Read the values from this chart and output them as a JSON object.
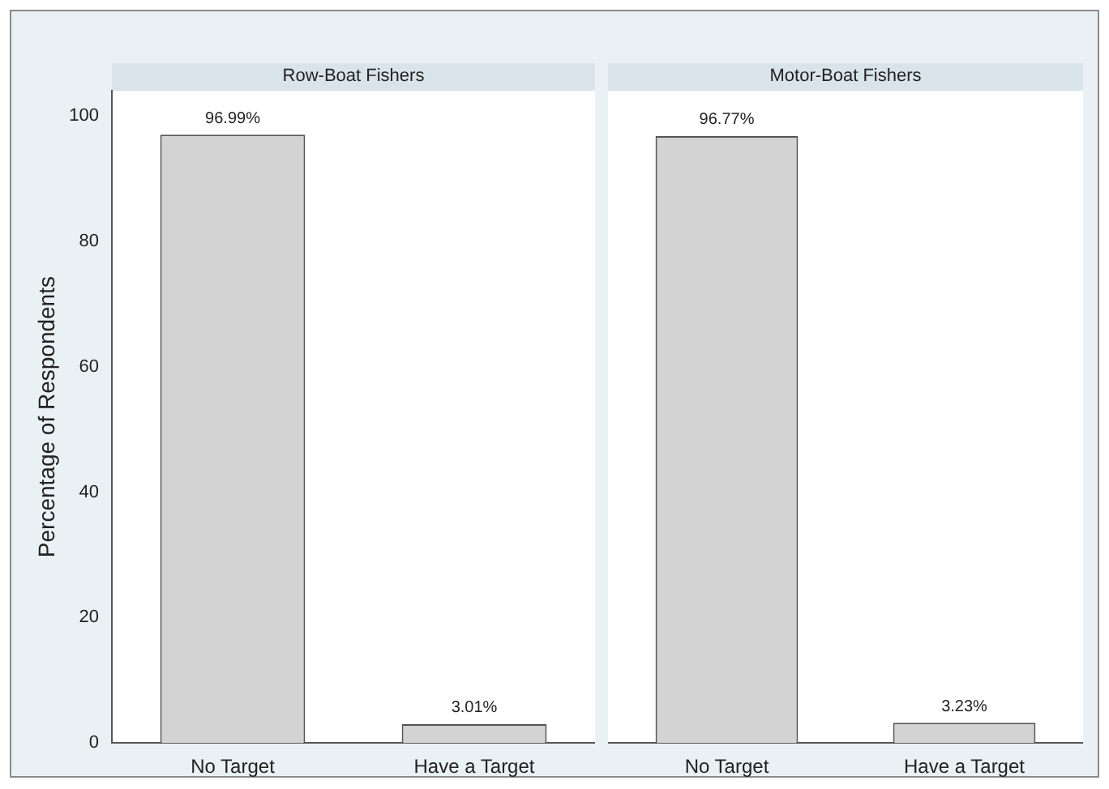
{
  "chart_data": [
    {
      "type": "bar",
      "title": "Row-Boat Fishers",
      "ylabel": "Percentage of Respondents",
      "categories": [
        "No Target",
        "Have a Target"
      ],
      "values": [
        96.99,
        3.01
      ],
      "color": "#d3d3d3",
      "value_labels": [
        "96.99%",
        "3.01%"
      ],
      "ylim": [
        0,
        104
      ],
      "yticks": [
        0,
        20,
        40,
        60,
        80,
        100
      ]
    },
    {
      "type": "bar",
      "title": "Motor-Boat Fishers",
      "categories": [
        "No Target",
        "Have a Target"
      ],
      "values": [
        96.77,
        3.23
      ],
      "color": "#d3d3d3",
      "value_labels": [
        "96.77%",
        "3.23%"
      ],
      "ylim": [
        0,
        104
      ],
      "yticks": [
        0,
        20,
        40,
        60,
        80,
        100
      ],
      "tick_labels": "x"
    }
  ]
}
